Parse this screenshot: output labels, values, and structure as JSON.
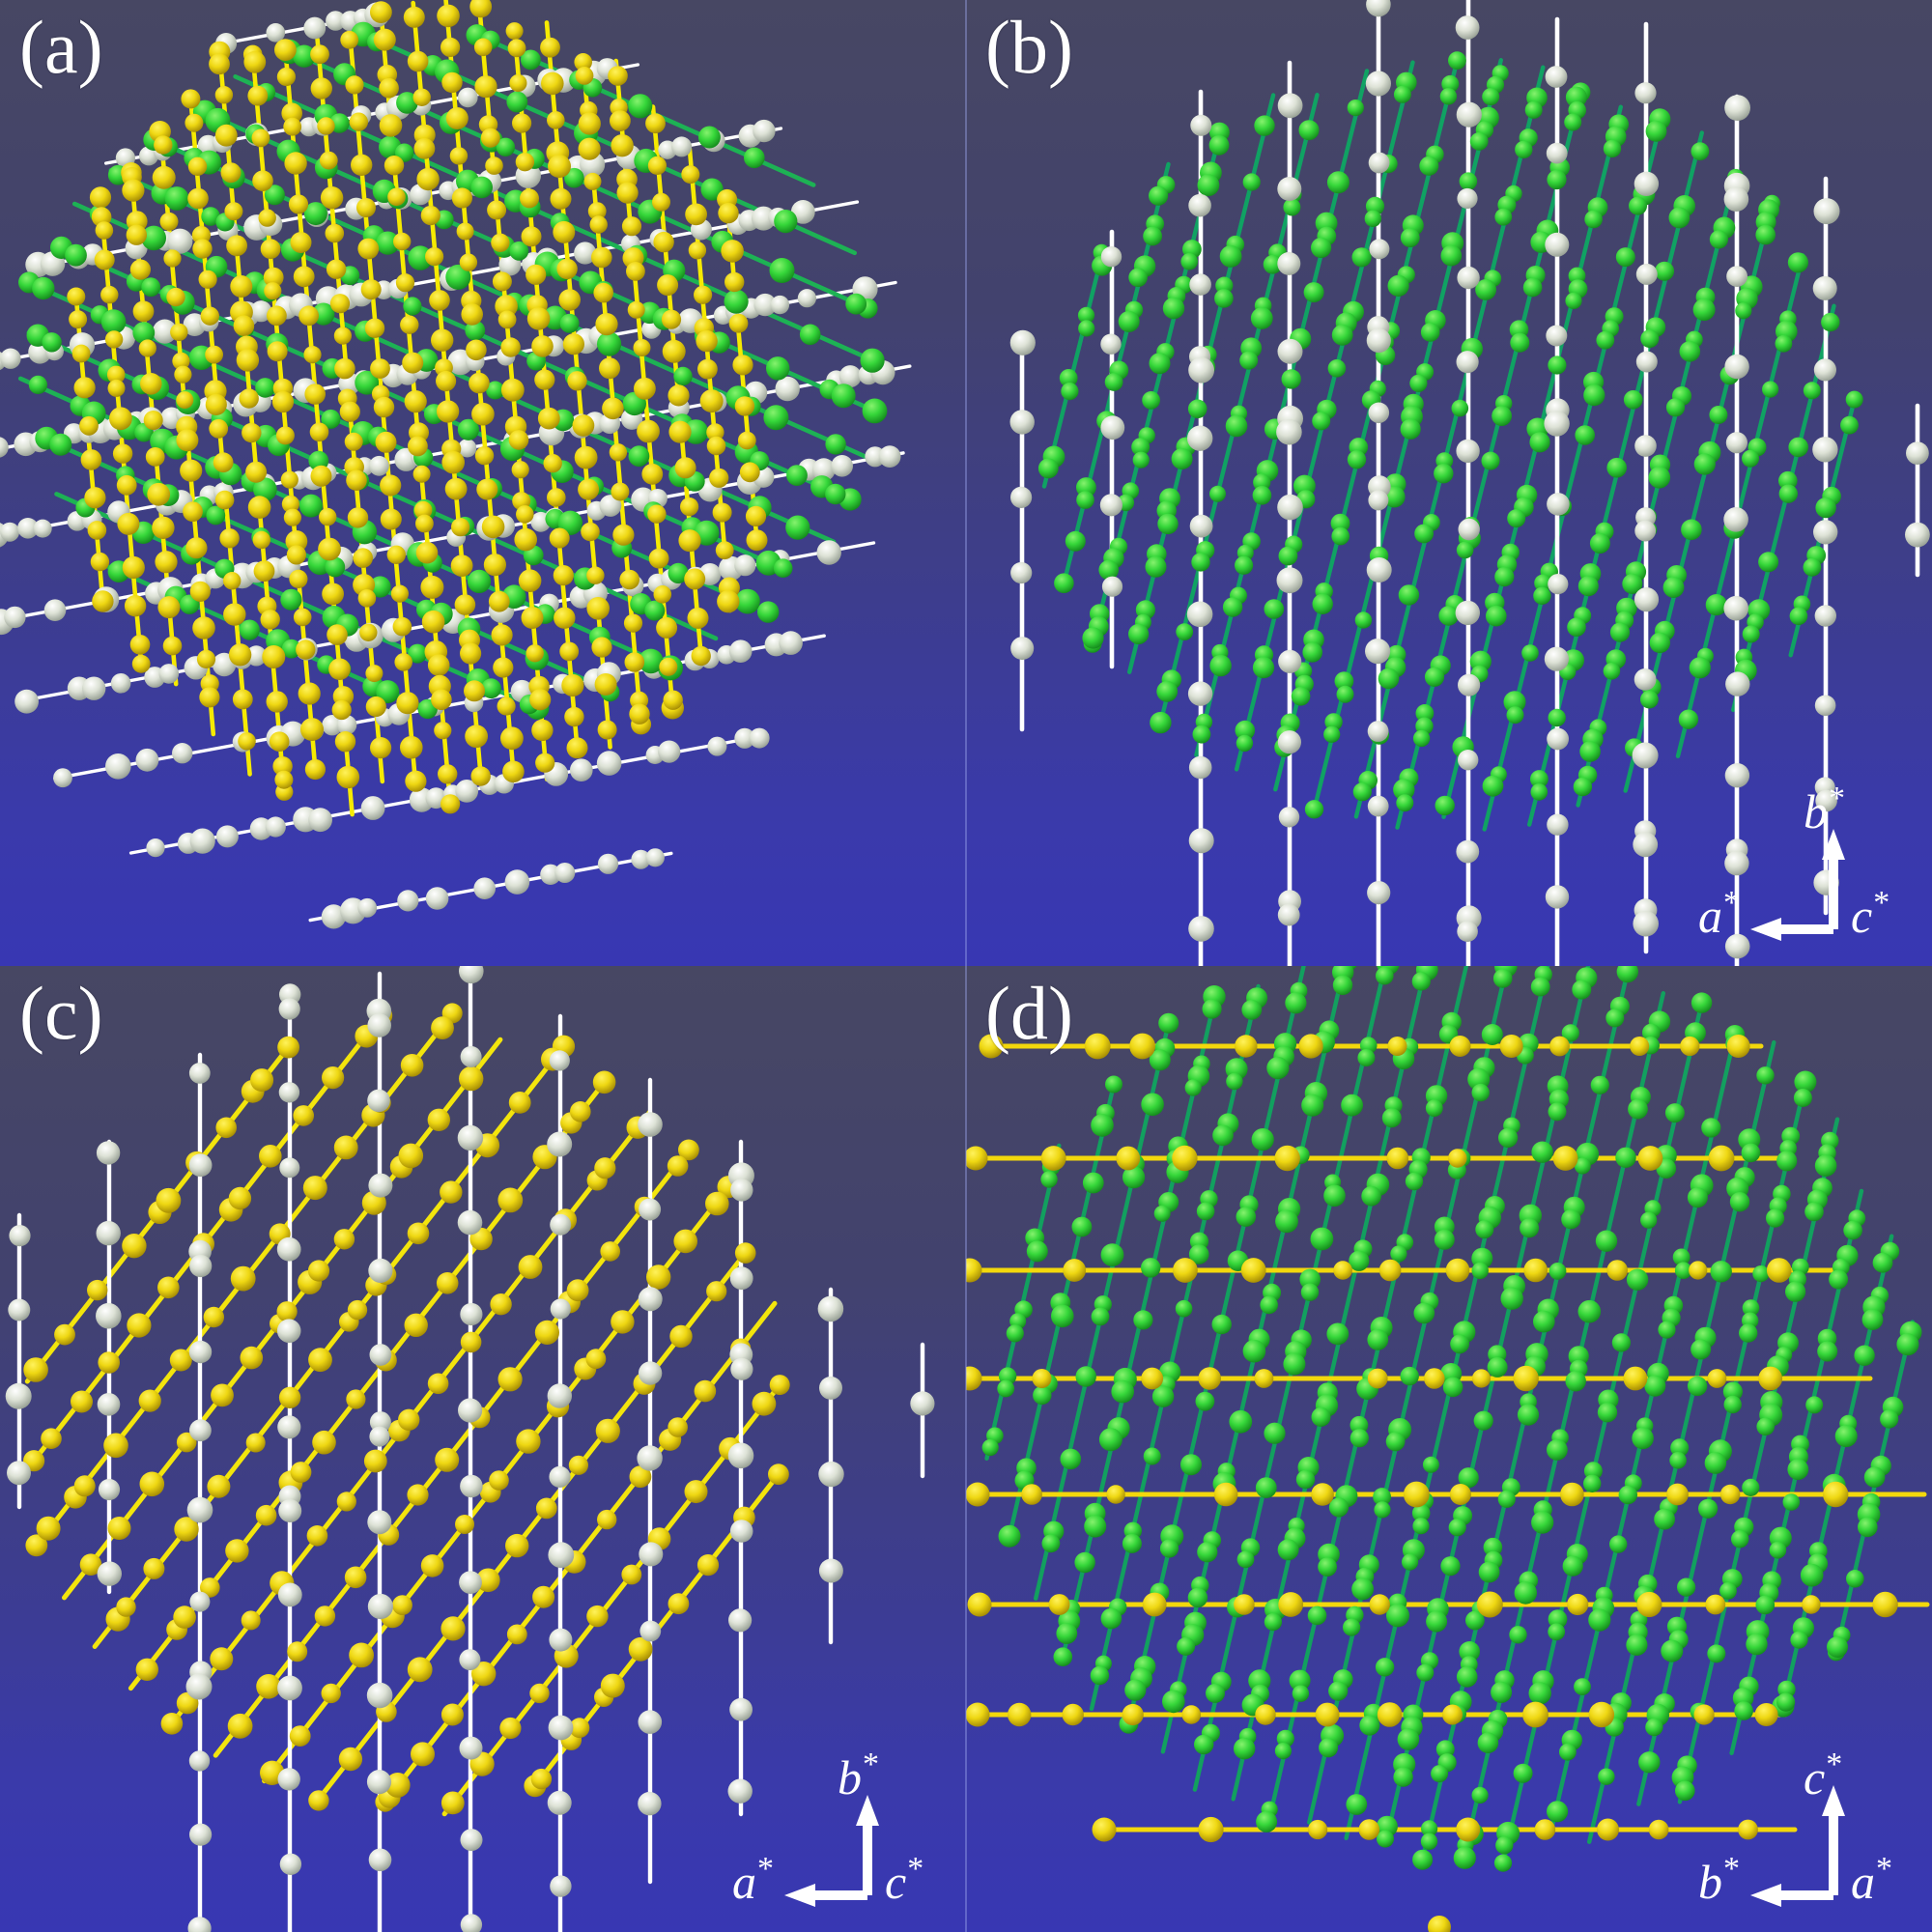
{
  "figure": {
    "axis_sup": "*",
    "colors": {
      "background_top": "#474763",
      "background_bottom": "#3837b3",
      "seam": "rgba(155,165,235,0.42)",
      "white_line": "#ffffff",
      "green_line": "#12a25f",
      "green_line_bright": "#1db254",
      "yellow_line": "#f6ea00",
      "yellow_line_d": "#f3d80c",
      "label_color": "#ffffff"
    },
    "sphere_colors": {
      "white": [
        "#ffffff",
        "#dde2d6",
        "#8c958a"
      ],
      "green": [
        "#86f26e",
        "#36d73a",
        "#0f7f18"
      ],
      "yellow": [
        "#fff25c",
        "#eed712",
        "#997f02"
      ]
    },
    "panels": [
      {
        "id": "a",
        "label": "(a)",
        "axes": null,
        "render": {
          "families": [
            {
              "type": "rows",
              "seed": 101,
              "line_color": "#ffffff",
              "line_width": 3.4,
              "sphere_color": "white",
              "angle": -10.5,
              "rows": [
                [
                  312,
                  30,
                  88
                ],
                [
                  385,
                  118,
                  280
                ],
                [
                  420,
                  205,
                  395
                ],
                [
                  440,
                  292,
                  455
                ],
                [
                  455,
                  380,
                  480
                ],
                [
                  462,
                  468,
                  488
                ],
                [
                  465,
                  556,
                  478
                ],
                [
                  462,
                  644,
                  450
                ],
                [
                  455,
                  732,
                  405
                ],
                [
                  465,
                  822,
                  335
                ],
                [
                  508,
                  918,
                  190
                ]
              ],
              "step": [
                26,
                64
              ],
              "radius": [
                9.5,
                13.5
              ],
              "cluster_p": [
                0.45,
                0.12
              ],
              "cluster_gap": 15,
              "jitter": 2
            },
            {
              "type": "diagonals",
              "seed": 202,
              "line_color": "#1db254",
              "line_width": 4.6,
              "sphere_color": "green",
              "angle": 24,
              "spacing": 47,
              "ellipse": [
                468,
                385,
                432,
                348
              ],
              "overshoot": 28,
              "step": [
                36,
                88
              ],
              "radius": [
                9.5,
                13
              ],
              "cluster_p": [
                0.35,
                0
              ],
              "cluster_gap": 16,
              "jitter": 2,
              "end_sphere_p": 0.3
            },
            {
              "type": "diagonals",
              "seed": 303,
              "line_color": "#f6ea00",
              "line_width": 4.6,
              "sphere_color": "yellow",
              "angle": 85,
              "spacing": 34,
              "ellipse": [
                430,
                420,
                362,
                388
              ],
              "overshoot": 50,
              "step": [
                32,
                47
              ],
              "radius": [
                9,
                12
              ],
              "cluster_p": [
                0.15,
                0
              ],
              "cluster_gap": 14,
              "jitter": 1.5,
              "end_sphere_p": 0.5
            }
          ]
        }
      },
      {
        "id": "b",
        "label": "(b)",
        "axes": {
          "up": "b",
          "left": "a",
          "origin": "c"
        },
        "render": {
          "families": [
            {
              "type": "diagonals",
              "seed": 404,
              "line_color": "#10a263",
              "line_width": 4.4,
              "sphere_color": "green",
              "angle": 104,
              "spacing": 44,
              "ellipse": [
                500,
                460,
                420,
                382
              ],
              "overshoot": 22,
              "step": [
                40,
                84
              ],
              "radius": [
                8.5,
                11.5
              ],
              "cluster_p": [
                0.65,
                0.3
              ],
              "cluster_gap": 13,
              "jitter": 3,
              "end_sphere_p": 0.25
            },
            {
              "type": "columns",
              "seed": 505,
              "line_color": "#ffffff",
              "line_width": 4.6,
              "sphere_color": "white",
              "columns": [
                [
                  58,
                  346,
                  755
                ],
                [
                  151,
                  240,
                  690
                ],
                [
                  243,
                  95,
                  1010
                ],
                [
                  335,
                  65,
                  1010
                ],
                [
                  427,
                  -10,
                  1010
                ],
                [
                  520,
                  -10,
                  1010
                ],
                [
                  612,
                  20,
                  1010
                ],
                [
                  704,
                  25,
                  985
                ],
                [
                  798,
                  100,
                  1010
                ],
                [
                  890,
                  185,
                  945
                ],
                [
                  985,
                  420,
                  595
                ]
              ],
              "step": [
                74,
                96
              ],
              "radius": [
                10.5,
                13.5
              ],
              "cluster_p": [
                0.1,
                0
              ],
              "cluster_gap": 14,
              "jitter": 1
            }
          ]
        }
      },
      {
        "id": "c",
        "label": "(c)",
        "axes": {
          "up": "b",
          "left": "a",
          "origin": "c"
        },
        "render": {
          "families": [
            {
              "type": "diagonals",
              "seed": 606,
              "line_color": "#f3e50c",
              "line_width": 5,
              "sphere_color": "yellow",
              "angle": -52,
              "spacing": 56,
              "ellipse": [
                425,
                468,
                382,
                396
              ],
              "overshoot": 32,
              "step": [
                46,
                62
              ],
              "radius": [
                10,
                13
              ],
              "cluster_p": [
                0.12,
                0
              ],
              "cluster_gap": 15,
              "jitter": 1.5,
              "end_sphere_p": 0.5
            },
            {
              "type": "columns",
              "seed": 707,
              "line_color": "#ffffff",
              "line_width": 4.4,
              "sphere_color": "white",
              "columns": [
                [
                  20,
                  258,
                  560
                ],
                [
                  113,
                  182,
                  648
                ],
                [
                  207,
                  92,
                  1010
                ],
                [
                  300,
                  28,
                  1010
                ],
                [
                  393,
                  8,
                  1010
                ],
                [
                  487,
                  -8,
                  1010
                ],
                [
                  580,
                  52,
                  1010
                ],
                [
                  673,
                  118,
                  948
                ],
                [
                  767,
                  182,
                  878
                ],
                [
                  860,
                  335,
                  700
                ],
                [
                  955,
                  392,
                  528
                ]
              ],
              "step": [
                76,
                100
              ],
              "radius": [
                10.5,
                13.5
              ],
              "cluster_p": [
                0.12,
                0
              ],
              "cluster_gap": 15,
              "jitter": 1
            }
          ]
        }
      },
      {
        "id": "d",
        "label": "(d)",
        "axes": {
          "up": "c",
          "left": "b",
          "origin": "a"
        },
        "render": {
          "families": [
            {
              "type": "diagonals",
              "seed": 808,
              "line_color": "#12a05f",
              "line_width": 4.4,
              "sphere_color": "green",
              "angle": 103,
              "spacing": 41,
              "ellipse": [
                500,
                442,
                478,
                462
              ],
              "overshoot": 30,
              "step": [
                44,
                92
              ],
              "radius": [
                8.5,
                12
              ],
              "cluster_p": [
                0.6,
                0.25
              ],
              "cluster_gap": 13,
              "jitter": 3,
              "end_sphere_p": 0.35
            },
            {
              "type": "horizontals",
              "seed": 909,
              "line_color": "#f3d80c",
              "line_width": 5,
              "sphere_color": "yellow",
              "lines": [
                [
                  83,
                  22,
                  823
                ],
                [
                  199,
                  6,
                  846
                ],
                [
                  315,
                  0,
                  902
                ],
                [
                  427,
                  0,
                  936
                ],
                [
                  547,
                  8,
                  992
                ],
                [
                  661,
                  10,
                  995
                ],
                [
                  775,
                  8,
                  848
                ],
                [
                  894,
                  139,
                  858
                ]
              ],
              "step": [
                42,
                118
              ],
              "radius": [
                9.5,
                13.5
              ],
              "start_sphere_r": 12.5
            }
          ],
          "extra_spheres": [
            [
              490,
              995,
              12,
              "yellow"
            ]
          ]
        }
      }
    ]
  }
}
